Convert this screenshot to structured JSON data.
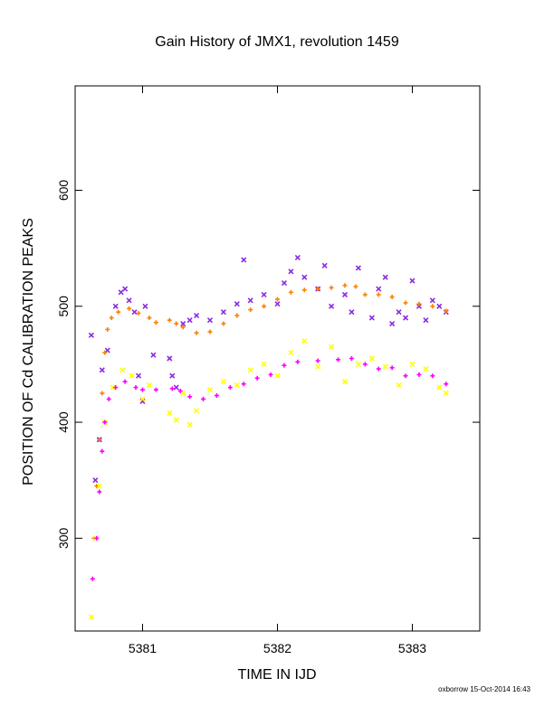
{
  "title": "Gain History of JMX1, revolution 1459",
  "credit": "oxborrow 15-Oct-2014 16:43",
  "chart_data": {
    "type": "scatter",
    "title": "Gain History of JMX1, revolution 1459",
    "xlabel": "TIME IN IJD",
    "ylabel": "POSITION OF Cd CALIBRATION PEAKS",
    "xlim": [
      5380.5,
      5383.5
    ],
    "ylim": [
      220,
      690
    ],
    "x_ticks": [
      5381,
      5382,
      5383
    ],
    "y_ticks": [
      300,
      400,
      500,
      600
    ],
    "grid": false,
    "legend": "none",
    "series": [
      {
        "marker": "x",
        "color": "#8a2be2",
        "points": [
          [
            5380.62,
            475
          ],
          [
            5380.65,
            350
          ],
          [
            5380.68,
            385
          ],
          [
            5380.7,
            445
          ],
          [
            5380.74,
            462
          ],
          [
            5380.8,
            500
          ],
          [
            5380.84,
            512
          ],
          [
            5380.87,
            515
          ],
          [
            5380.9,
            505
          ],
          [
            5380.94,
            495
          ],
          [
            5380.97,
            440
          ],
          [
            5381.0,
            418
          ],
          [
            5381.02,
            500
          ],
          [
            5381.08,
            458
          ],
          [
            5381.2,
            455
          ],
          [
            5381.22,
            440
          ],
          [
            5381.25,
            430
          ],
          [
            5381.3,
            485
          ],
          [
            5381.35,
            488
          ],
          [
            5381.4,
            492
          ],
          [
            5381.5,
            488
          ],
          [
            5381.6,
            495
          ],
          [
            5381.7,
            502
          ],
          [
            5381.75,
            540
          ],
          [
            5381.8,
            505
          ],
          [
            5381.9,
            510
          ],
          [
            5382.0,
            502
          ],
          [
            5382.05,
            520
          ],
          [
            5382.1,
            530
          ],
          [
            5382.15,
            542
          ],
          [
            5382.2,
            525
          ],
          [
            5382.3,
            515
          ],
          [
            5382.35,
            535
          ],
          [
            5382.4,
            500
          ],
          [
            5382.5,
            510
          ],
          [
            5382.55,
            495
          ],
          [
            5382.6,
            533
          ],
          [
            5382.7,
            490
          ],
          [
            5382.75,
            515
          ],
          [
            5382.8,
            525
          ],
          [
            5382.85,
            485
          ],
          [
            5382.9,
            495
          ],
          [
            5382.95,
            490
          ],
          [
            5383.0,
            522
          ],
          [
            5383.05,
            500
          ],
          [
            5383.1,
            488
          ],
          [
            5383.15,
            505
          ],
          [
            5383.2,
            500
          ],
          [
            5383.25,
            495
          ]
        ]
      },
      {
        "marker": "+",
        "color": "#ff8000",
        "points": [
          [
            5380.64,
            300
          ],
          [
            5380.66,
            345
          ],
          [
            5380.68,
            385
          ],
          [
            5380.7,
            425
          ],
          [
            5380.72,
            460
          ],
          [
            5380.74,
            480
          ],
          [
            5380.77,
            490
          ],
          [
            5380.82,
            495
          ],
          [
            5380.9,
            498
          ],
          [
            5380.97,
            494
          ],
          [
            5381.05,
            490
          ],
          [
            5381.1,
            486
          ],
          [
            5381.2,
            488
          ],
          [
            5381.25,
            485
          ],
          [
            5381.3,
            482
          ],
          [
            5381.4,
            477
          ],
          [
            5381.5,
            478
          ],
          [
            5381.6,
            485
          ],
          [
            5381.7,
            492
          ],
          [
            5381.8,
            497
          ],
          [
            5381.9,
            500
          ],
          [
            5382.0,
            506
          ],
          [
            5382.1,
            512
          ],
          [
            5382.2,
            514
          ],
          [
            5382.3,
            515
          ],
          [
            5382.4,
            516
          ],
          [
            5382.5,
            518
          ],
          [
            5382.58,
            517
          ],
          [
            5382.65,
            510
          ],
          [
            5382.75,
            510
          ],
          [
            5382.85,
            508
          ],
          [
            5382.95,
            503
          ],
          [
            5383.05,
            502
          ],
          [
            5383.15,
            500
          ],
          [
            5383.25,
            496
          ]
        ]
      },
      {
        "marker": "x",
        "color": "#ffff00",
        "points": [
          [
            5380.62,
            232
          ],
          [
            5380.65,
            300
          ],
          [
            5380.68,
            345
          ],
          [
            5380.72,
            400
          ],
          [
            5380.78,
            430
          ],
          [
            5380.85,
            445
          ],
          [
            5380.92,
            440
          ],
          [
            5381.0,
            420
          ],
          [
            5381.05,
            432
          ],
          [
            5381.2,
            408
          ],
          [
            5381.25,
            402
          ],
          [
            5381.3,
            425
          ],
          [
            5381.35,
            398
          ],
          [
            5381.4,
            410
          ],
          [
            5381.5,
            428
          ],
          [
            5381.6,
            435
          ],
          [
            5381.7,
            432
          ],
          [
            5381.8,
            445
          ],
          [
            5381.9,
            450
          ],
          [
            5382.0,
            440
          ],
          [
            5382.1,
            460
          ],
          [
            5382.2,
            470
          ],
          [
            5382.3,
            448
          ],
          [
            5382.4,
            465
          ],
          [
            5382.5,
            435
          ],
          [
            5382.6,
            450
          ],
          [
            5382.7,
            455
          ],
          [
            5382.8,
            448
          ],
          [
            5382.9,
            432
          ],
          [
            5383.0,
            450
          ],
          [
            5383.1,
            446
          ],
          [
            5383.2,
            430
          ],
          [
            5383.25,
            425
          ]
        ]
      },
      {
        "marker": "+",
        "color": "#ff00ff",
        "points": [
          [
            5380.63,
            265
          ],
          [
            5380.66,
            300
          ],
          [
            5380.68,
            340
          ],
          [
            5380.7,
            375
          ],
          [
            5380.72,
            400
          ],
          [
            5380.75,
            420
          ],
          [
            5380.8,
            430
          ],
          [
            5380.87,
            435
          ],
          [
            5380.95,
            430
          ],
          [
            5381.0,
            428
          ],
          [
            5381.1,
            428
          ],
          [
            5381.22,
            429
          ],
          [
            5381.28,
            427
          ],
          [
            5381.35,
            422
          ],
          [
            5381.45,
            420
          ],
          [
            5381.55,
            423
          ],
          [
            5381.65,
            430
          ],
          [
            5381.75,
            433
          ],
          [
            5381.85,
            438
          ],
          [
            5381.95,
            441
          ],
          [
            5382.05,
            449
          ],
          [
            5382.15,
            452
          ],
          [
            5382.3,
            453
          ],
          [
            5382.45,
            454
          ],
          [
            5382.55,
            455
          ],
          [
            5382.65,
            450
          ],
          [
            5382.75,
            446
          ],
          [
            5382.85,
            447
          ],
          [
            5382.95,
            440
          ],
          [
            5383.05,
            441
          ],
          [
            5383.15,
            440
          ],
          [
            5383.25,
            433
          ]
        ]
      }
    ]
  }
}
